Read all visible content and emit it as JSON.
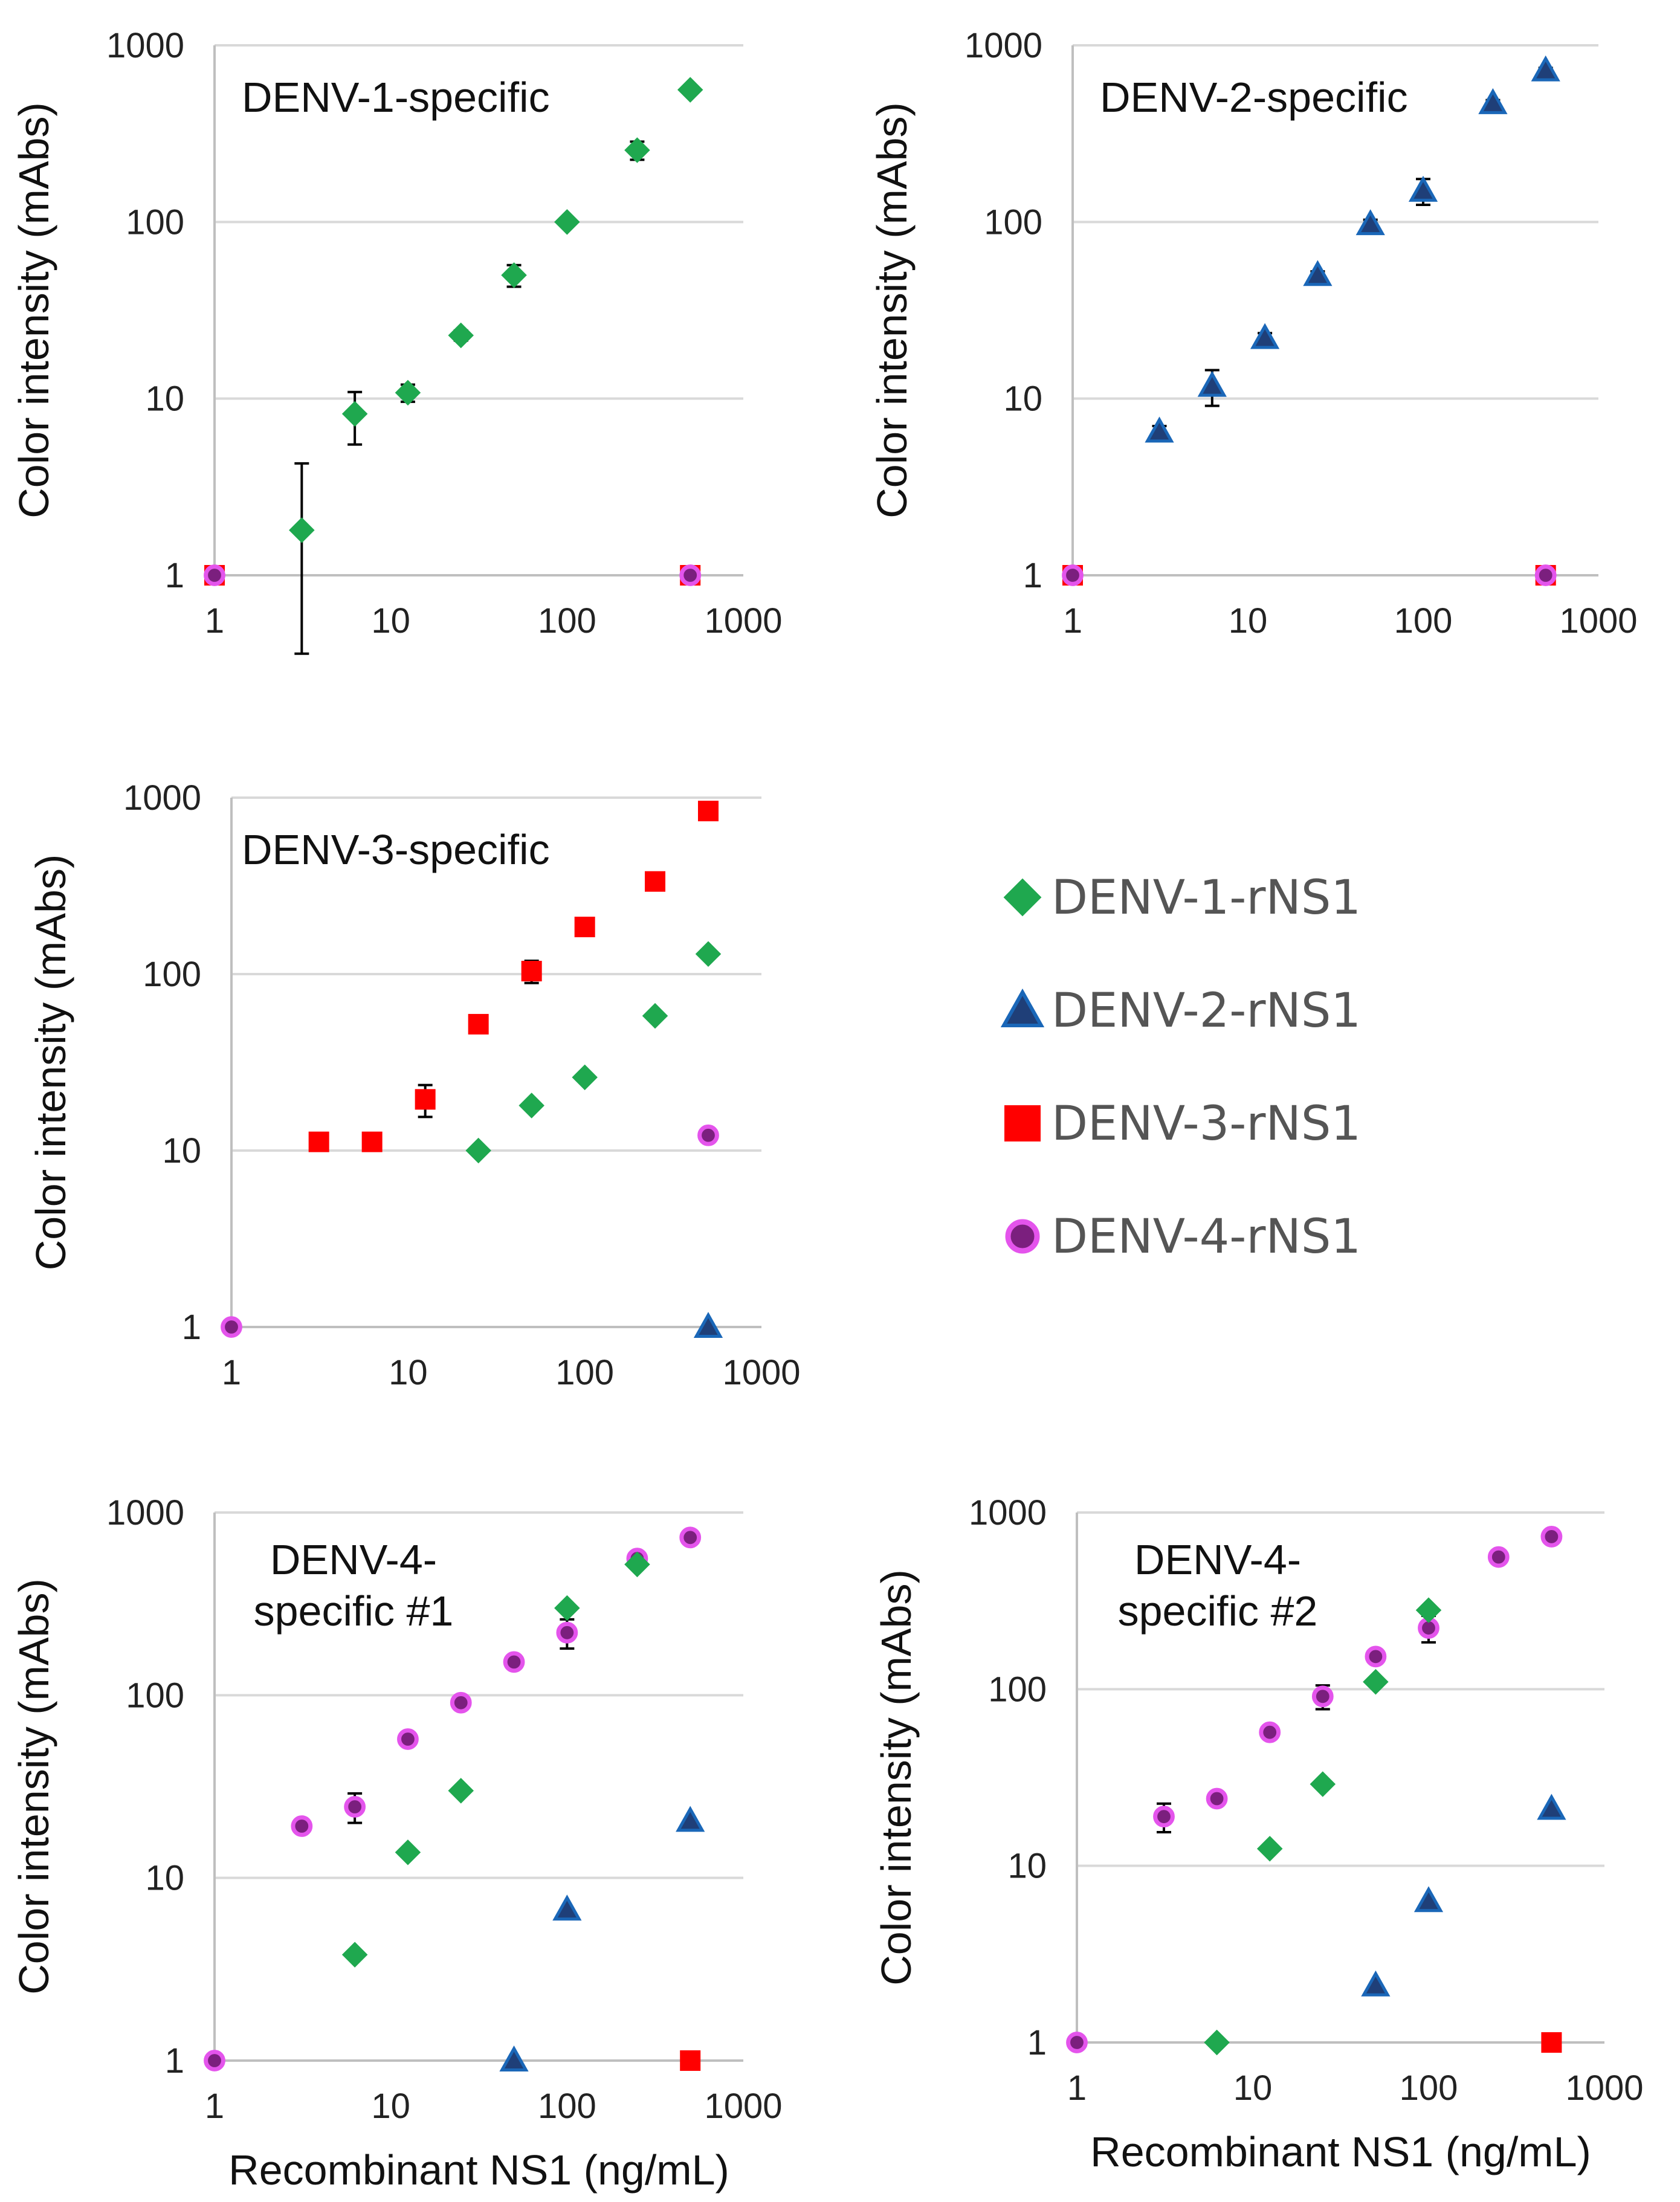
{
  "styles": {
    "DENV-1-rNS1": {
      "shape": "diamond",
      "fill": "#1fa84f",
      "stroke": "#1fa84f"
    },
    "DENV-2-rNS1": {
      "shape": "triangle",
      "fill": "#1f3f78",
      "stroke": "#1a67b8"
    },
    "DENV-3-rNS1": {
      "shape": "square",
      "fill": "#ff0000",
      "stroke": "#ff0000"
    },
    "DENV-4-rNS1": {
      "shape": "circle",
      "fill": "#7b1f7e",
      "stroke": "#e454ec"
    }
  },
  "legend": [
    "DENV-1-rNS1",
    "DENV-2-rNS1",
    "DENV-3-rNS1",
    "DENV-4-rNS1"
  ],
  "chart_data": [
    {
      "type": "scatter",
      "title": "DENV-1-specific",
      "xlabel": "",
      "ylabel": "Color intensity (mAbs)",
      "xscale": "log",
      "yscale": "log",
      "xlim": [
        1,
        1000
      ],
      "ylim": [
        1,
        1000
      ],
      "xticks": [
        "1",
        "10",
        "100",
        "1000"
      ],
      "yticks": [
        "1",
        "10",
        "100",
        "1000"
      ],
      "series": [
        {
          "name": "DENV-1-rNS1",
          "x": [
            3.125,
            6.25,
            12.5,
            25,
            50,
            100,
            250,
            500
          ],
          "y": [
            1.8,
            8.2,
            10.8,
            22.8,
            50,
            100,
            255,
            560
          ],
          "err": [
            2.5,
            2.7,
            1.2,
            1.5,
            7,
            5,
            30,
            30
          ]
        },
        {
          "name": "DENV-3-rNS1",
          "x": [
            1,
            500
          ],
          "y": [
            1,
            1
          ]
        },
        {
          "name": "DENV-4-rNS1",
          "x": [
            1,
            500
          ],
          "y": [
            1,
            1
          ]
        }
      ]
    },
    {
      "type": "scatter",
      "title": "DENV-2-specific",
      "xlabel": "",
      "ylabel": "Color intensity (mAbs)",
      "xscale": "log",
      "yscale": "log",
      "xlim": [
        1,
        1000
      ],
      "ylim": [
        1,
        1000
      ],
      "xticks": [
        "1",
        "10",
        "100",
        "1000"
      ],
      "yticks": [
        "1",
        "10",
        "100",
        "1000"
      ],
      "series": [
        {
          "name": "DENV-2-rNS1",
          "x": [
            3.125,
            6.25,
            12.5,
            25,
            50,
            100,
            250,
            500
          ],
          "y": [
            6.5,
            11.8,
            22,
            50,
            97,
            150,
            470,
            720
          ],
          "err": [
            0.5,
            2.7,
            1.5,
            2.5,
            6,
            25,
            20,
            25
          ]
        },
        {
          "name": "DENV-3-rNS1",
          "x": [
            1,
            500
          ],
          "y": [
            1,
            1
          ]
        },
        {
          "name": "DENV-4-rNS1",
          "x": [
            1,
            500
          ],
          "y": [
            1,
            1
          ]
        }
      ]
    },
    {
      "type": "scatter",
      "title": "DENV-3-specific",
      "xlabel": "",
      "ylabel": "Color intensity (mAbs)",
      "xscale": "log",
      "yscale": "log",
      "xlim": [
        1,
        1000
      ],
      "ylim": [
        1,
        1000
      ],
      "xticks": [
        "1",
        "10",
        "100",
        "1000"
      ],
      "yticks": [
        "1",
        "10",
        "100",
        "1000"
      ],
      "series": [
        {
          "name": "DENV-3-rNS1",
          "x": [
            3.125,
            6.25,
            12.5,
            25,
            50,
            100,
            250,
            500
          ],
          "y": [
            11.2,
            11.2,
            19.5,
            52,
            104,
            185,
            335,
            840
          ],
          "err": [
            0.8,
            1.0,
            4,
            3,
            15,
            10,
            15,
            25
          ]
        },
        {
          "name": "DENV-1-rNS1",
          "x": [
            25,
            50,
            100,
            250,
            500
          ],
          "y": [
            10,
            18,
            26,
            58,
            130
          ]
        },
        {
          "name": "DENV-4-rNS1",
          "x": [
            1,
            500
          ],
          "y": [
            1,
            12.2
          ]
        },
        {
          "name": "DENV-2-rNS1",
          "x": [
            500
          ],
          "y": [
            1
          ]
        }
      ]
    },
    {
      "type": "scatter",
      "title": "DENV-4-\nspecific #1",
      "xlabel": "Recombinant NS1 (ng/mL)",
      "ylabel": "Color intensity (mAbs)",
      "xscale": "log",
      "yscale": "log",
      "xlim": [
        1,
        1000
      ],
      "ylim": [
        1,
        1000
      ],
      "xticks": [
        "1",
        "10",
        "100",
        "1000"
      ],
      "yticks": [
        "1",
        "10",
        "100",
        "1000"
      ],
      "series": [
        {
          "name": "DENV-4-rNS1",
          "x": [
            1,
            3.125,
            6.25,
            12.5,
            25,
            50,
            100,
            250,
            500
          ],
          "y": [
            1,
            19.2,
            24.5,
            57.5,
            91,
            152,
            220,
            560,
            730
          ],
          "err": [
            0,
            1.5,
            4.5,
            4,
            6,
            6,
            40,
            15,
            25
          ]
        },
        {
          "name": "DENV-1-rNS1",
          "x": [
            6.25,
            12.5,
            25,
            100,
            250
          ],
          "y": [
            3.8,
            13.8,
            30,
            300,
            520
          ]
        },
        {
          "name": "DENV-2-rNS1",
          "x": [
            50,
            100,
            500
          ],
          "y": [
            1,
            6.7,
            20.5
          ]
        },
        {
          "name": "DENV-3-rNS1",
          "x": [
            500
          ],
          "y": [
            1
          ]
        }
      ]
    },
    {
      "type": "scatter",
      "title": "DENV-4-\nspecific #2",
      "xlabel": "Recombinant NS1 (ng/mL)",
      "ylabel": "Color intensity (mAbs)",
      "xscale": "log",
      "yscale": "log",
      "xlim": [
        1,
        1000
      ],
      "ylim": [
        1,
        1000
      ],
      "xticks": [
        "1",
        "10",
        "100",
        "1000"
      ],
      "yticks": [
        "1",
        "10",
        "100",
        "1000"
      ],
      "series": [
        {
          "name": "DENV-4-rNS1",
          "x": [
            1,
            3.125,
            6.25,
            12.5,
            25,
            50,
            100,
            250,
            500
          ],
          "y": [
            1,
            19,
            24,
            57,
            91,
            153,
            222,
            560,
            730
          ],
          "err": [
            0,
            3.5,
            1.5,
            2.5,
            14,
            6,
            38,
            15,
            25
          ]
        },
        {
          "name": "DENV-1-rNS1",
          "x": [
            6.25,
            12.5,
            25,
            50,
            100
          ],
          "y": [
            1,
            12.5,
            29,
            110,
            280
          ]
        },
        {
          "name": "DENV-2-rNS1",
          "x": [
            50,
            100,
            500
          ],
          "y": [
            2.1,
            6.3,
            21
          ]
        },
        {
          "name": "DENV-3-rNS1",
          "x": [
            500
          ],
          "y": [
            1
          ]
        }
      ]
    }
  ]
}
